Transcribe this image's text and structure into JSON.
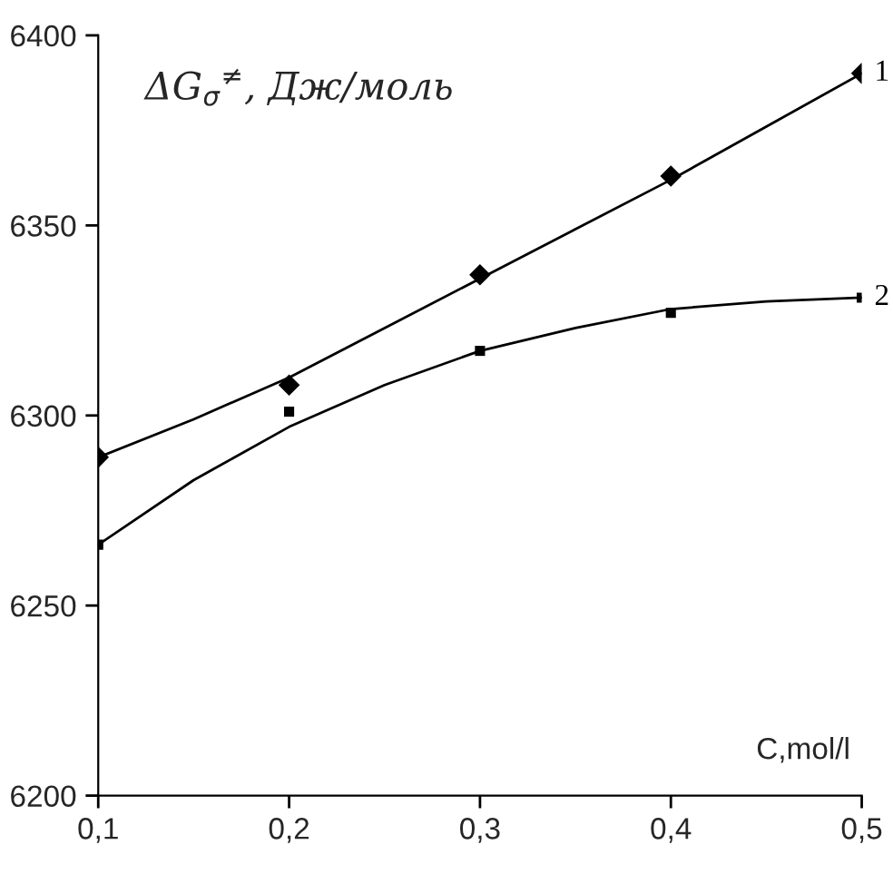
{
  "chart_data": {
    "type": "scatter",
    "ylabel": "ΔG$_{σ}$$^{≠}$, Дж/моль",
    "xlabel": "C,mol/l",
    "x": [
      0.1,
      0.2,
      0.3,
      0.4,
      0.5
    ],
    "series": [
      {
        "name": "1",
        "color": "#000000",
        "marker": "diamond",
        "values": [
          6289,
          6308,
          6337,
          6363,
          6390
        ]
      },
      {
        "name": "2",
        "color": "#000000",
        "marker": "square",
        "values": [
          6266,
          6301,
          6317,
          6327,
          6331
        ]
      },
      {
        "type": "line",
        "color": "#000000",
        "x": [
          0.1,
          0.15,
          0.2,
          0.25,
          0.3,
          0.35,
          0.4,
          0.45,
          0.5
        ],
        "values": [
          6289,
          6299,
          6310,
          6323,
          6336,
          6349,
          6362,
          6376,
          6390
        ]
      },
      {
        "type": "line",
        "color": "#000000",
        "x": [
          0.1,
          0.15,
          0.2,
          0.25,
          0.3,
          0.35,
          0.4,
          0.45,
          0.5
        ],
        "values": [
          6266,
          6283,
          6297,
          6308,
          6317,
          6323,
          6328,
          6330,
          6331
        ]
      }
    ],
    "xlim": [
      0.1,
      0.5
    ],
    "xticks": [
      {
        "value": 0.1,
        "label": "0,1"
      },
      {
        "value": 0.2,
        "label": "0,2"
      },
      {
        "value": 0.3,
        "label": "0,3"
      },
      {
        "value": 0.4,
        "label": "0,4"
      },
      {
        "value": 0.5,
        "label": "0,5"
      }
    ],
    "ylim": [
      6200,
      6400
    ],
    "yticks": [
      6200,
      6250,
      6300,
      6350,
      6400
    ],
    "grid": false,
    "legend": false
  }
}
